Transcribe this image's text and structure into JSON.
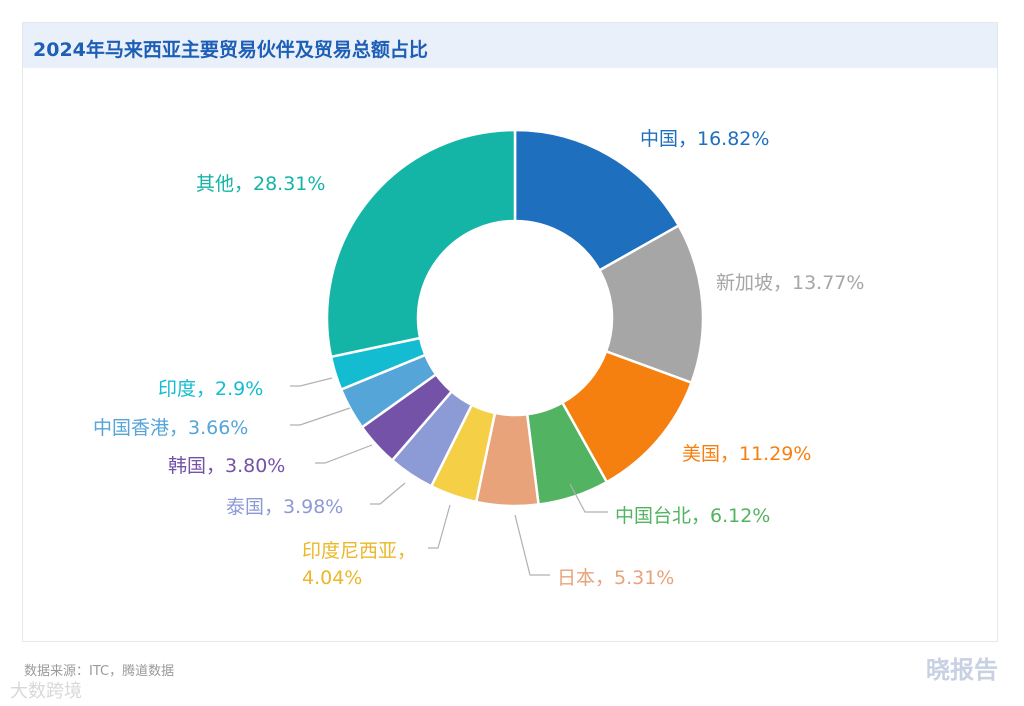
{
  "header": {
    "title": "2024年马来西亚主要贸易伙伴及贸易总额占比"
  },
  "footer": {
    "source": "数据来源：ITC，腾道数据",
    "brand": "晓报告",
    "watermark": "大数跨境"
  },
  "chart_data": {
    "type": "pie",
    "donut": true,
    "title": "2024年马来西亚主要贸易伙伴及贸易总额占比",
    "slices": [
      {
        "name": "中国",
        "value": 16.82,
        "label": "中国，16.82%",
        "color": "#1f6fbf"
      },
      {
        "name": "新加坡",
        "value": 13.77,
        "label": "新加坡，13.77%",
        "color": "#a6a6a6"
      },
      {
        "name": "美国",
        "value": 11.29,
        "label": "美国，11.29%",
        "color": "#f5800f"
      },
      {
        "name": "中国台北",
        "value": 6.12,
        "label": "中国台北，6.12%",
        "color": "#52b462"
      },
      {
        "name": "日本",
        "value": 5.31,
        "label": "日本，5.31%",
        "color": "#e8a37a"
      },
      {
        "name": "印度尼西亚",
        "value": 4.04,
        "label": "印度尼西亚，\n4.04%",
        "color": "#f5cf46"
      },
      {
        "name": "泰国",
        "value": 3.98,
        "label": "泰国，3.98%",
        "color": "#8c9ad6"
      },
      {
        "name": "韩国",
        "value": 3.8,
        "label": "韩国，3.80%",
        "color": "#7452a8"
      },
      {
        "name": "中国香港",
        "value": 3.66,
        "label": "中国香港，3.66%",
        "color": "#55a5d8"
      },
      {
        "name": "印度",
        "value": 2.9,
        "label": "印度，2.9%",
        "color": "#14bcd1"
      },
      {
        "name": "其他",
        "value": 28.31,
        "label": "其他，28.31%",
        "color": "#14b5a6"
      }
    ]
  }
}
